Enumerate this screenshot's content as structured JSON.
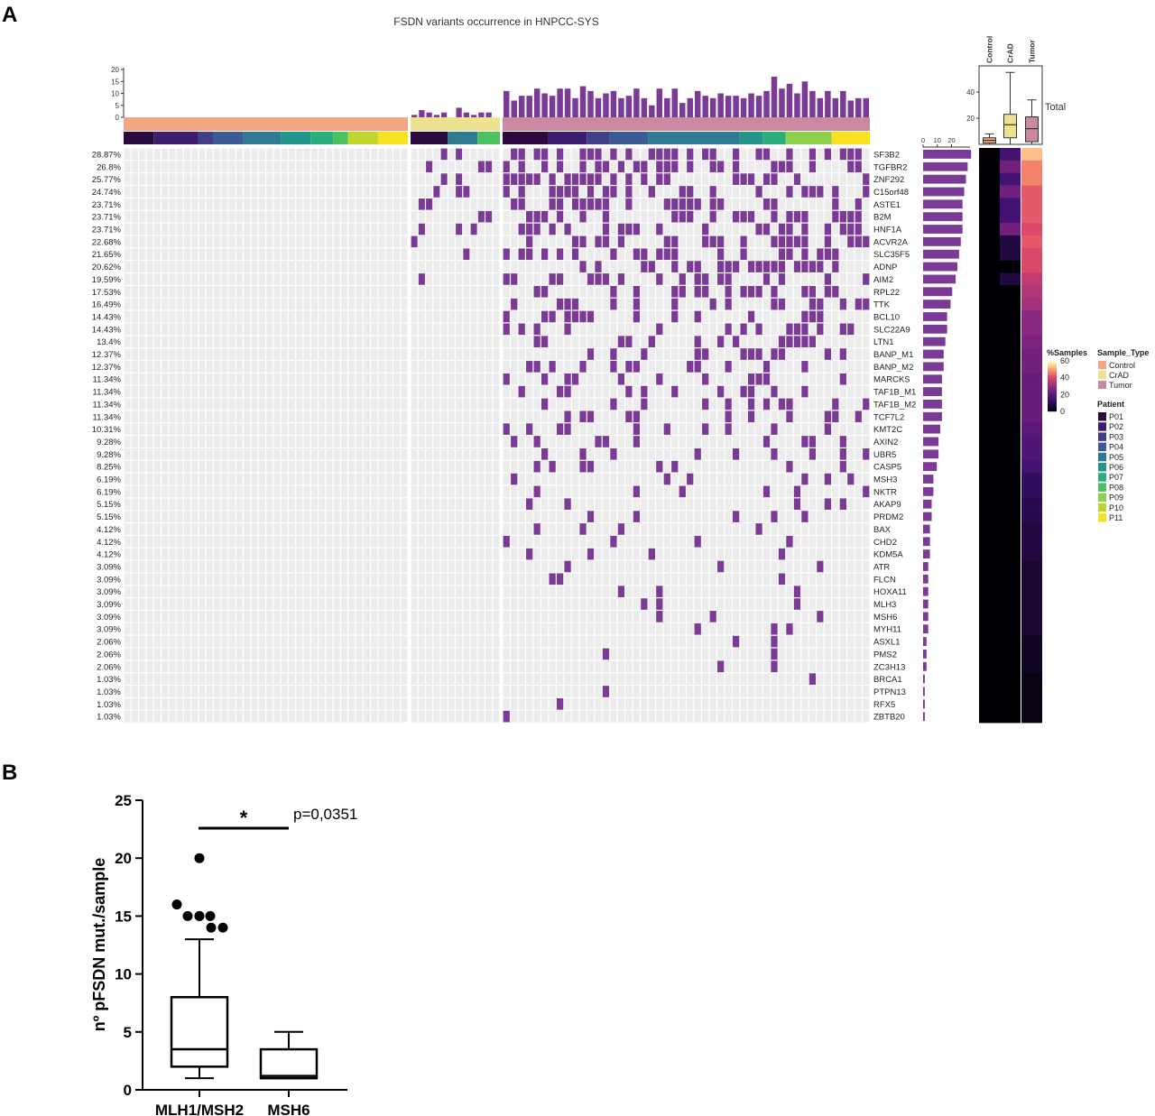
{
  "panel_a_label": "A",
  "panel_b_label": "B",
  "colors": {
    "mutation": "#7b3a96",
    "absent": "#ececec",
    "sample_type": {
      "Control": "#f4a582",
      "CrAD": "#ece28f",
      "Tumor": "#c98aa0"
    },
    "patients": [
      "#2a0a3f",
      "#3d1d6e",
      "#413f86",
      "#3b5b94",
      "#2f7a92",
      "#23958a",
      "#2aae7c",
      "#4cc160",
      "#8ed04d",
      "#bcd52f",
      "#f6e21f"
    ]
  },
  "chart_data": [
    {
      "type": "heatmap",
      "title": "FSDN variants occurrence in HNPCC-SYS",
      "genes": [
        "SF3B2",
        "TGFBR2",
        "ZNF292",
        "C15orf48",
        "ASTE1",
        "B2M",
        "HNF1A",
        "ACVR2A",
        "SLC35F5",
        "ADNP",
        "AIM2",
        "RPL22",
        "TTK",
        "BCL10",
        "SLC22A9",
        "LTN1",
        "BANP_M1",
        "BANP_M2",
        "MARCKS",
        "TAF1B_M1",
        "TAF1B_M2",
        "TCF7L2",
        "KMT2C",
        "AXIN2",
        "UBR5",
        "CASP5",
        "MSH3",
        "NKTR",
        "AKAP9",
        "PRDM2",
        "BAX",
        "CHD2",
        "KDM5A",
        "ATR",
        "FLCN",
        "HOXA11",
        "MLH3",
        "MSH6",
        "MYH11",
        "ASXL1",
        "PMS2",
        "ZC3H13",
        "BRCA1",
        "PTPN13",
        "RFX5",
        "ZBTB20"
      ],
      "percentages": [
        "28.87%",
        "26.8%",
        "25.77%",
        "24.74%",
        "23.71%",
        "23.71%",
        "23.71%",
        "22.68%",
        "21.65%",
        "20.62%",
        "19.59%",
        "17.53%",
        "16.49%",
        "14.43%",
        "14.43%",
        "13.4%",
        "12.37%",
        "12.37%",
        "11.34%",
        "11.34%",
        "11.34%",
        "11.34%",
        "10.31%",
        "9.28%",
        "9.28%",
        "8.25%",
        "6.19%",
        "6.19%",
        "5.15%",
        "5.15%",
        "4.12%",
        "4.12%",
        "4.12%",
        "3.09%",
        "3.09%",
        "3.09%",
        "3.09%",
        "3.09%",
        "3.09%",
        "2.06%",
        "2.06%",
        "2.06%",
        "1.03%",
        "1.03%",
        "1.03%",
        "1.03%"
      ],
      "samples_per_group": {
        "Control": 38,
        "CrAD": 12,
        "Tumor": 48
      },
      "patient_counts_per_group": {
        "Control": [
          4,
          6,
          2,
          4,
          5,
          4,
          3,
          2,
          4,
          4
        ],
        "CrAD": [
          5,
          4,
          3
        ],
        "Tumor": [
          6,
          5,
          3,
          5,
          12,
          3,
          3,
          6,
          5
        ]
      },
      "top_bar": {
        "ylim": [
          0,
          20
        ],
        "ticks": [
          0,
          5,
          10,
          15,
          20
        ]
      },
      "right_bar": {
        "ticks": [
          0,
          10,
          20
        ]
      },
      "legend_type_title": "Sample_Type",
      "legend_types": [
        "Control",
        "CrAD",
        "Tumor"
      ],
      "legend_patient_title": "Patient",
      "legend_patients": [
        "P01",
        "P02",
        "P03",
        "P04",
        "P05",
        "P06",
        "P07",
        "P08",
        "P09",
        "P10",
        "P11"
      ],
      "legend_scale_title": "%Samples",
      "legend_scale_ticks": [
        0,
        20,
        40,
        60
      ]
    },
    {
      "type": "box",
      "categories": [
        "Control",
        "CrAD",
        "Tumor"
      ],
      "label": "Total",
      "ylim": [
        0,
        60
      ],
      "ticks": [
        20,
        40
      ],
      "boxes": [
        {
          "name": "Control",
          "min": 0,
          "q1": 1,
          "median": 3,
          "q3": 5,
          "max": 8
        },
        {
          "name": "CrAD",
          "min": 0,
          "q1": 5,
          "median": 15,
          "q3": 23,
          "max": 55
        },
        {
          "name": "Tumor",
          "min": 0,
          "q1": 2,
          "median": 12,
          "q3": 21,
          "max": 34
        }
      ]
    },
    {
      "type": "box",
      "categories": [
        "MLH1/MSH2",
        "MSH6"
      ],
      "ylabel": "nº pFSDN mut./sample",
      "ylim": [
        0,
        25
      ],
      "yticks": [
        0,
        5,
        10,
        15,
        20,
        25
      ],
      "boxes": [
        {
          "name": "MLH1/MSH2",
          "min": 1,
          "q1": 2,
          "median": 3.5,
          "q3": 8,
          "max": 13
        },
        {
          "name": "MSH6",
          "min": 1,
          "q1": 1,
          "median": 1.2,
          "q3": 3.5,
          "max": 5
        }
      ],
      "outliers": [
        {
          "x": "MLH1/MSH2",
          "y": 20
        },
        {
          "x": "MLH1/MSH2",
          "y": 16
        },
        {
          "x": "MLH1/MSH2",
          "y": 15
        },
        {
          "x": "MLH1/MSH2",
          "y": 15
        },
        {
          "x": "MLH1/MSH2",
          "y": 15
        },
        {
          "x": "MLH1/MSH2",
          "y": 15
        },
        {
          "x": "MLH1/MSH2",
          "y": 14
        },
        {
          "x": "MLH1/MSH2",
          "y": 14
        }
      ],
      "significance": "*",
      "p_value": "p=0,0351"
    }
  ]
}
